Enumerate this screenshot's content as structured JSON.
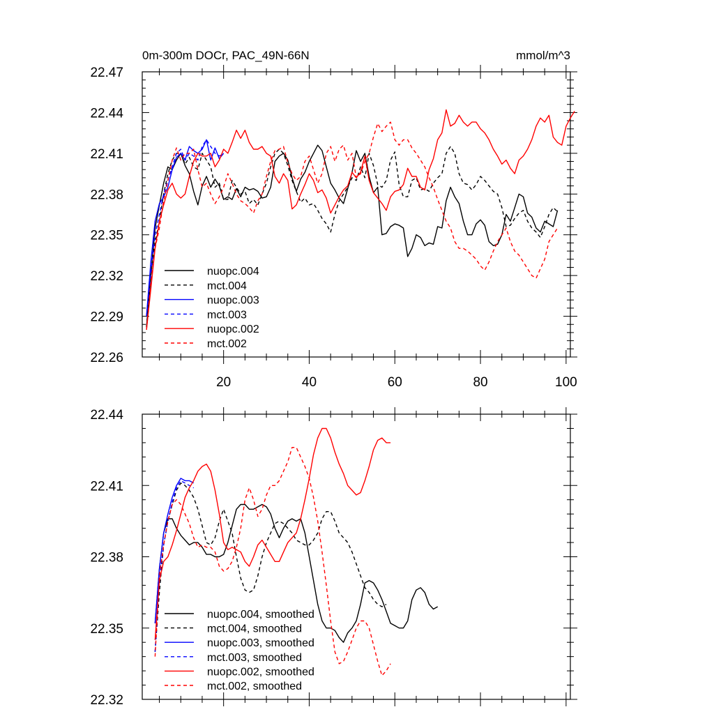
{
  "chart_data": [
    {
      "type": "line",
      "title": "0m-300m DOCr, PAC_49N-66N",
      "units": "mmol/m^3",
      "xlim": [
        1,
        101
      ],
      "ylim": [
        22.26,
        22.47
      ],
      "xticks": [
        20,
        40,
        60,
        80,
        100
      ],
      "xtick_labels": [
        "20",
        "40",
        "60",
        "80",
        "100"
      ],
      "yticks": [
        22.26,
        22.29,
        22.32,
        22.35,
        22.38,
        22.41,
        22.44,
        22.47
      ],
      "ytick_labels": [
        "22.26",
        "22.29",
        "22.32",
        "22.35",
        "22.38",
        "22.41",
        "22.44",
        "22.47"
      ],
      "legend_position": "lower-left",
      "series": [
        {
          "name": "nuopc.004",
          "color": "#000000",
          "dash": "solid",
          "x_start": 2,
          "values": [
            22.282,
            22.32,
            22.355,
            22.372,
            22.388,
            22.4,
            22.398,
            22.405,
            22.41,
            22.401,
            22.395,
            22.382,
            22.372,
            22.386,
            22.393,
            22.385,
            22.391,
            22.386,
            22.376,
            22.378,
            22.376,
            22.384,
            22.378,
            22.385,
            22.383,
            22.384,
            22.382,
            22.377,
            22.378,
            22.385,
            22.404,
            22.408,
            22.41,
            22.405,
            22.392,
            22.382,
            22.391,
            22.396,
            22.404,
            22.41,
            22.416,
            22.412,
            22.4,
            22.388,
            22.383,
            22.377,
            22.373,
            22.384,
            22.396,
            22.412,
            22.404,
            22.41,
            22.393,
            22.381,
            22.385,
            22.35,
            22.351,
            22.356,
            22.358,
            22.357,
            22.355,
            22.334,
            22.34,
            22.35,
            22.348,
            22.342,
            22.344,
            22.343,
            22.356,
            22.355,
            22.375,
            22.385,
            22.378,
            22.373,
            22.36,
            22.35,
            22.35,
            22.358,
            22.361,
            22.357,
            22.345,
            22.342,
            22.343,
            22.35,
            22.365,
            22.36,
            22.37,
            22.38,
            22.378,
            22.366,
            22.363,
            22.355,
            22.352,
            22.36,
            22.358,
            22.356,
            22.368
          ]
        },
        {
          "name": "mct.004",
          "color": "#000000",
          "dash": "dash",
          "x_start": 2,
          "values": [
            22.282,
            22.32,
            22.345,
            22.36,
            22.38,
            22.395,
            22.405,
            22.41,
            22.41,
            22.402,
            22.407,
            22.4,
            22.398,
            22.41,
            22.405,
            22.4,
            22.385,
            22.388,
            22.376,
            22.376,
            22.39,
            22.385,
            22.38,
            22.382,
            22.373,
            22.376,
            22.372,
            22.38,
            22.388,
            22.4,
            22.41,
            22.413,
            22.41,
            22.401,
            22.39,
            22.382,
            22.374,
            22.377,
            22.372,
            22.373,
            22.368,
            22.362,
            22.358,
            22.352,
            22.365,
            22.375,
            22.38,
            22.385,
            22.392,
            22.39,
            22.4,
            22.392,
            22.41,
            22.401,
            22.387,
            22.385,
            22.39,
            22.405,
            22.411,
            22.387,
            22.378,
            22.378,
            22.39,
            22.392,
            22.383,
            22.384,
            22.382,
            22.388,
            22.392,
            22.395,
            22.41,
            22.415,
            22.41,
            22.395,
            22.388,
            22.387,
            22.383,
            22.387,
            22.393,
            22.39,
            22.386,
            22.382,
            22.38,
            22.37,
            22.356,
            22.357,
            22.362,
            22.366,
            22.368,
            22.36,
            22.355,
            22.352,
            22.348,
            22.356,
            22.365,
            22.37,
            22.367
          ]
        },
        {
          "name": "nuopc.003",
          "color": "#0000ff",
          "dash": "solid",
          "x_start": 2,
          "values": [
            22.29,
            22.33,
            22.36,
            22.373,
            22.378,
            22.385,
            22.398,
            22.407,
            22.41,
            22.405,
            22.415,
            22.412,
            22.41,
            22.413,
            22.42,
            22.405,
            22.414,
            22.406,
            22.41
          ]
        },
        {
          "name": "mct.003",
          "color": "#0000ff",
          "dash": "dash",
          "x_start": 2,
          "values": [
            22.29,
            22.322,
            22.35,
            22.365,
            22.38,
            22.39,
            22.4,
            22.41,
            22.413,
            22.405,
            22.41,
            22.408,
            22.405,
            22.415,
            22.42,
            22.415,
            22.41,
            22.408,
            22.41
          ]
        },
        {
          "name": "nuopc.002",
          "color": "#ff0000",
          "dash": "solid",
          "x_start": 2,
          "values": [
            22.28,
            22.31,
            22.34,
            22.36,
            22.372,
            22.383,
            22.388,
            22.38,
            22.377,
            22.38,
            22.393,
            22.404,
            22.41,
            22.408,
            22.408,
            22.41,
            22.4,
            22.405,
            22.413,
            22.41,
            22.418,
            22.427,
            22.421,
            22.427,
            22.418,
            22.413,
            22.413,
            22.415,
            22.41,
            22.408,
            22.393,
            22.388,
            22.395,
            22.39,
            22.369,
            22.372,
            22.38,
            22.387,
            22.395,
            22.39,
            22.381,
            22.383,
            22.377,
            22.366,
            22.372,
            22.378,
            22.383,
            22.386,
            22.396,
            22.392,
            22.396,
            22.408,
            22.39,
            22.381,
            22.377,
            22.373,
            22.368,
            22.378,
            22.382,
            22.383,
            22.387,
            22.399,
            22.393,
            22.393,
            22.385,
            22.383,
            22.398,
            22.406,
            22.42,
            22.425,
            22.442,
            22.43,
            22.432,
            22.438,
            22.433,
            22.43,
            22.433,
            22.433,
            22.428,
            22.425,
            22.42,
            22.413,
            22.408,
            22.402,
            22.405,
            22.399,
            22.395,
            22.405,
            22.408,
            22.413,
            22.42,
            22.43,
            22.436,
            22.433,
            22.438,
            22.422,
            22.418,
            22.416,
            22.43,
            22.436,
            22.441
          ]
        },
        {
          "name": "mct.002",
          "color": "#ff0000",
          "dash": "dash",
          "x_start": 2,
          "values": [
            22.28,
            22.315,
            22.34,
            22.355,
            22.375,
            22.39,
            22.405,
            22.414,
            22.405,
            22.41,
            22.41,
            22.413,
            22.398,
            22.385,
            22.388,
            22.38,
            22.373,
            22.378,
            22.385,
            22.395,
            22.388,
            22.38,
            22.375,
            22.373,
            22.37,
            22.366,
            22.375,
            22.38,
            22.393,
            22.404,
            22.412,
            22.413,
            22.415,
            22.403,
            22.395,
            22.39,
            22.393,
            22.404,
            22.408,
            22.398,
            22.388,
            22.395,
            22.41,
            22.415,
            22.404,
            22.413,
            22.416,
            22.405,
            22.41,
            22.392,
            22.395,
            22.404,
            22.41,
            22.422,
            22.432,
            22.426,
            22.43,
            22.433,
            22.42,
            22.416,
            22.42,
            22.42,
            22.414,
            22.41,
            22.405,
            22.4,
            22.392,
            22.385,
            22.376,
            22.368,
            22.36,
            22.355,
            22.345,
            22.34,
            22.34,
            22.338,
            22.335,
            22.332,
            22.327,
            22.324,
            22.33,
            22.338,
            22.345,
            22.35,
            22.355,
            22.345,
            22.338,
            22.335,
            22.33,
            22.325,
            22.32,
            22.318,
            22.325,
            22.332,
            22.345,
            22.35,
            22.355
          ]
        }
      ]
    },
    {
      "type": "line",
      "title": "",
      "xlim": [
        1,
        101
      ],
      "ylim": [
        22.32,
        22.44
      ],
      "xticks": [
        20,
        40,
        60,
        80,
        100
      ],
      "xtick_labels": [],
      "yticks": [
        22.32,
        22.35,
        22.38,
        22.41,
        22.44
      ],
      "ytick_labels": [
        "22.32",
        "22.35",
        "22.38",
        "22.41",
        "22.44"
      ],
      "legend_position": "lower-left",
      "series": [
        {
          "name": "nuopc.004, smoothed",
          "color": "#000000",
          "dash": "solid",
          "x_start": 4,
          "values": [
            22.352,
            22.375,
            22.39,
            22.396,
            22.396,
            22.392,
            22.389,
            22.387,
            22.385,
            22.386,
            22.386,
            22.384,
            22.381,
            22.381,
            22.38,
            22.38,
            22.381,
            22.386,
            22.393,
            22.4,
            22.402,
            22.402,
            22.4,
            22.4,
            22.401,
            22.402,
            22.401,
            22.398,
            22.392,
            22.388,
            22.392,
            22.395,
            22.396,
            22.395,
            22.396,
            22.39,
            22.38,
            22.37,
            22.36,
            22.353,
            22.35,
            22.35,
            22.349,
            22.346,
            22.344,
            22.348,
            22.35,
            22.353,
            22.36,
            22.369,
            22.37,
            22.369,
            22.366,
            22.362,
            22.357,
            22.352,
            22.351,
            22.35,
            22.35,
            22.353,
            22.362,
            22.366,
            22.367,
            22.365,
            22.36,
            22.358,
            22.359
          ]
        },
        {
          "name": "mct.004, smoothed",
          "color": "#000000",
          "dash": "dash",
          "x_start": 4,
          "values": [
            22.34,
            22.365,
            22.385,
            22.395,
            22.402,
            22.408,
            22.411,
            22.41,
            22.408,
            22.405,
            22.4,
            22.393,
            22.386,
            22.385,
            22.388,
            22.395,
            22.4,
            22.395,
            22.39,
            22.38,
            22.371,
            22.366,
            22.365,
            22.366,
            22.372,
            22.38,
            22.386,
            22.39,
            22.394,
            22.395,
            22.394,
            22.392,
            22.39,
            22.387,
            22.386,
            22.385,
            22.385,
            22.387,
            22.39,
            22.396,
            22.399,
            22.399,
            22.395,
            22.39,
            22.388,
            22.386,
            22.382,
            22.377,
            22.372,
            22.367,
            22.365,
            22.362,
            22.36,
            22.359,
            22.36
          ]
        },
        {
          "name": "nuopc.003, smoothed",
          "color": "#0000ff",
          "dash": "solid",
          "x_start": 4,
          "values": [
            22.352,
            22.375,
            22.39,
            22.398,
            22.405,
            22.41,
            22.413,
            22.412,
            22.412,
            22.411
          ]
        },
        {
          "name": "mct.003, smoothed",
          "color": "#0000ff",
          "dash": "dash",
          "x_start": 4,
          "values": [
            22.34,
            22.37,
            22.385,
            22.395,
            22.403,
            22.409,
            22.412,
            22.411,
            22.41,
            22.409
          ]
        },
        {
          "name": "nuopc.002, smoothed",
          "color": "#ff0000",
          "dash": "solid",
          "x_start": 4,
          "values": [
            22.345,
            22.37,
            22.378,
            22.38,
            22.385,
            22.391,
            22.398,
            22.405,
            22.409,
            22.412,
            22.416,
            22.418,
            22.419,
            22.416,
            22.408,
            22.398,
            22.386,
            22.383,
            22.384,
            22.383,
            22.382,
            22.378,
            22.376,
            22.38,
            22.385,
            22.387,
            22.384,
            22.381,
            22.378,
            22.378,
            22.382,
            22.386,
            22.388,
            22.39,
            22.396,
            22.404,
            22.413,
            22.423,
            22.43,
            22.434,
            22.434,
            22.43,
            22.424,
            22.419,
            22.415,
            22.41,
            22.408,
            22.406,
            22.407,
            22.412,
            22.418,
            22.425,
            22.429,
            22.43,
            22.428,
            22.428
          ]
        },
        {
          "name": "mct.002, smoothed",
          "color": "#ff0000",
          "dash": "dash",
          "x_start": 4,
          "values": [
            22.338,
            22.372,
            22.385,
            22.395,
            22.402,
            22.404,
            22.402,
            22.398,
            22.394,
            22.388,
            22.384,
            22.385,
            22.384,
            22.384,
            22.382,
            22.376,
            22.374,
            22.375,
            22.378,
            22.384,
            22.392,
            22.404,
            22.409,
            22.404,
            22.397,
            22.4,
            22.406,
            22.41,
            22.41,
            22.412,
            22.416,
            22.42,
            22.426,
            22.426,
            22.422,
            22.418,
            22.413,
            22.405,
            22.395,
            22.382,
            22.368,
            22.353,
            22.34,
            22.335,
            22.336,
            22.34,
            22.345,
            22.35,
            22.353,
            22.353,
            22.35,
            22.343,
            22.336,
            22.33,
            22.332,
            22.335
          ]
        }
      ]
    }
  ]
}
